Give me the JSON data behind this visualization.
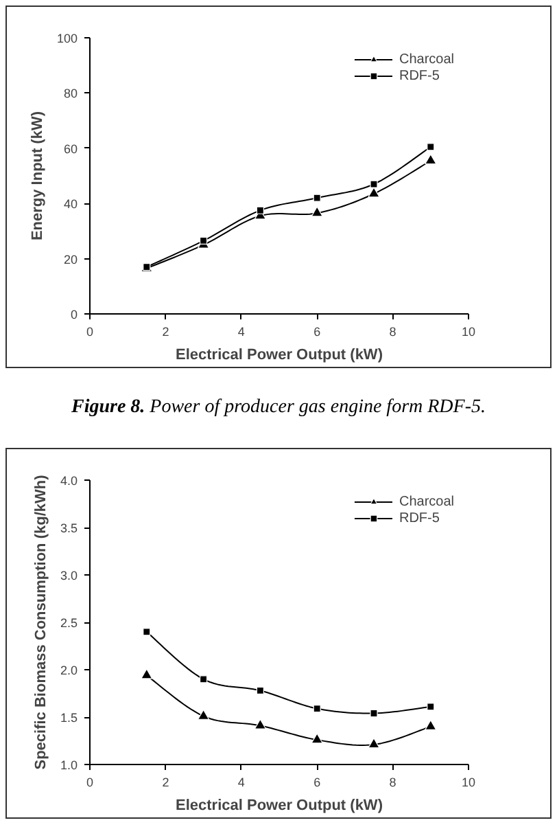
{
  "chart_data": [
    {
      "type": "line",
      "xlabel": "Electrical Power Output (kW)",
      "ylabel": "Energy Input (kW)",
      "x": [
        1.5,
        3,
        4.5,
        6,
        7.5,
        9
      ],
      "series": [
        {
          "name": "Charcoal",
          "color": "#000000",
          "marker": "triangle",
          "values": [
            16.5,
            25,
            35.5,
            36.5,
            43.5,
            55.5
          ]
        },
        {
          "name": "RDF-5",
          "color": "#000000",
          "marker": "square",
          "values": [
            17,
            26.5,
            37.5,
            42,
            47,
            60.5
          ]
        }
      ],
      "xlim": [
        0,
        10
      ],
      "xticks": [
        0,
        2,
        4,
        6,
        8,
        10
      ],
      "ylim": [
        0,
        100
      ],
      "yticks": [
        0,
        20,
        40,
        60,
        80,
        100
      ],
      "grid": false,
      "legend": "top right",
      "line_style": "solid",
      "annotations": [
        "Figure 8. Power of producer gas engine form RDF-5."
      ]
    },
    {
      "type": "line",
      "xlabel": "Electrical Power Output (kW)",
      "ylabel": "Specific Biomass Consumption (kg/kWh)",
      "x": [
        1.5,
        3,
        4.5,
        6,
        7.5,
        9
      ],
      "series": [
        {
          "name": "Charcoal",
          "color": "#000000",
          "marker": "triangle",
          "values": [
            1.94,
            1.51,
            1.41,
            1.26,
            1.21,
            1.4
          ]
        },
        {
          "name": "RDF-5",
          "color": "#000000",
          "marker": "square",
          "values": [
            2.4,
            1.9,
            1.78,
            1.59,
            1.54,
            1.61
          ]
        }
      ],
      "xlim": [
        0,
        10
      ],
      "xticks": [
        0,
        2,
        4,
        6,
        8,
        10
      ],
      "ylim": [
        1,
        4
      ],
      "yticks": [
        {
          "value": 1,
          "label": "1.0"
        },
        {
          "value": 1.5,
          "label": "1.5"
        },
        {
          "value": 2,
          "label": "2.0"
        },
        {
          "value": 2.5,
          "label": "2.5"
        },
        {
          "value": 3,
          "label": "3.0"
        },
        {
          "value": 3.5,
          "label": "3.5"
        },
        {
          "value": 4,
          "label": "4.0"
        }
      ],
      "grid": false,
      "legend": "top right",
      "line_style": "solid"
    }
  ]
}
